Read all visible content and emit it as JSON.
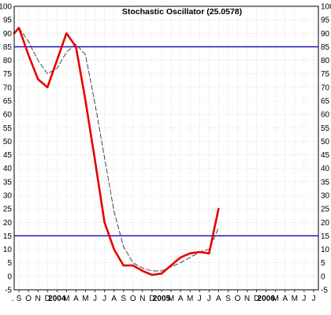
{
  "chart_data": {
    "type": "line",
    "title": "Stochastic Oscillator (25.0578)",
    "xlabel": "",
    "ylabel": "",
    "ylim": [
      -5,
      100
    ],
    "yticks": [
      -5,
      0,
      5,
      10,
      15,
      20,
      25,
      30,
      35,
      40,
      45,
      50,
      55,
      60,
      65,
      70,
      75,
      80,
      85,
      90,
      95,
      100
    ],
    "ytick_labels": [
      "-5",
      "0",
      "5",
      "10",
      "15",
      "20",
      "25",
      "30",
      "35",
      "40",
      "45",
      "50",
      "55",
      "60",
      "65",
      "70",
      "75",
      "80",
      "85",
      "90",
      "95",
      "100"
    ],
    "categories": [
      "S",
      "O",
      "N",
      "D",
      "2004",
      "M",
      "A",
      "M",
      "J",
      "J",
      "A",
      "S",
      "O",
      "N",
      "D",
      "2005",
      "M",
      "A",
      "M",
      "J",
      "J",
      "A",
      "S",
      "O",
      "N",
      "D",
      "2006",
      "M",
      "A",
      "M",
      "J",
      "J"
    ],
    "grid": true,
    "legend": "none",
    "reference_lines": [
      {
        "value": 85,
        "color": "#0000cc"
      },
      {
        "value": 15,
        "color": "#0000cc"
      }
    ],
    "series": [
      {
        "style": "solid",
        "color": "#e60000",
        "x": [
          -0.5,
          0.0,
          1.0,
          2.0,
          3.0,
          4.0,
          5.0,
          6.0,
          7.0,
          8.0,
          9.0,
          10.0,
          11.0,
          12.0,
          13.0,
          14.0,
          15.0,
          16.0,
          17.0,
          18.0,
          19.0,
          20.0,
          21.0
        ],
        "values": [
          90,
          92,
          82,
          73,
          70,
          80,
          90,
          85,
          65,
          43,
          20,
          10,
          4,
          4,
          2,
          0.5,
          1,
          4,
          7,
          8.5,
          9,
          8.5,
          25
        ]
      },
      {
        "style": "dashed",
        "color": "#333333",
        "x": [
          -0.5,
          0.0,
          1.0,
          2.0,
          3.0,
          4.0,
          5.0,
          6.0,
          7.0,
          8.0,
          9.0,
          10.0,
          11.0,
          12.0,
          13.0,
          14.0,
          15.0,
          16.0,
          17.0,
          18.0,
          19.0,
          20.0,
          21.0
        ],
        "values": [
          90,
          92,
          87,
          80,
          75,
          77,
          83,
          86,
          82,
          64,
          44,
          24,
          11,
          5,
          3,
          2,
          2,
          3.5,
          5,
          7,
          9,
          10,
          18
        ]
      }
    ]
  }
}
